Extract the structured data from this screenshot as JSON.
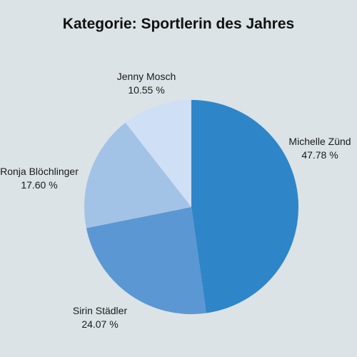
{
  "chart_data": {
    "type": "pie",
    "title": "Kategorie: Sportlerin des Jahres",
    "start_angle_deg": 0,
    "direction": "clockwise",
    "slices": [
      {
        "name": "Michelle Zünd",
        "value": 47.78,
        "value_label": "47.78 %",
        "color": "#2e86c8"
      },
      {
        "name": "Sirin Städler",
        "value": 24.07,
        "value_label": "24.07 %",
        "color": "#5b97d3"
      },
      {
        "name": "Ronja Blöchlinger",
        "value": 17.6,
        "value_label": "17.60 %",
        "color": "#a2c3e6"
      },
      {
        "name": "Jenny Mosch",
        "value": 10.55,
        "value_label": "10.55 %",
        "color": "#cfdff5"
      }
    ]
  }
}
